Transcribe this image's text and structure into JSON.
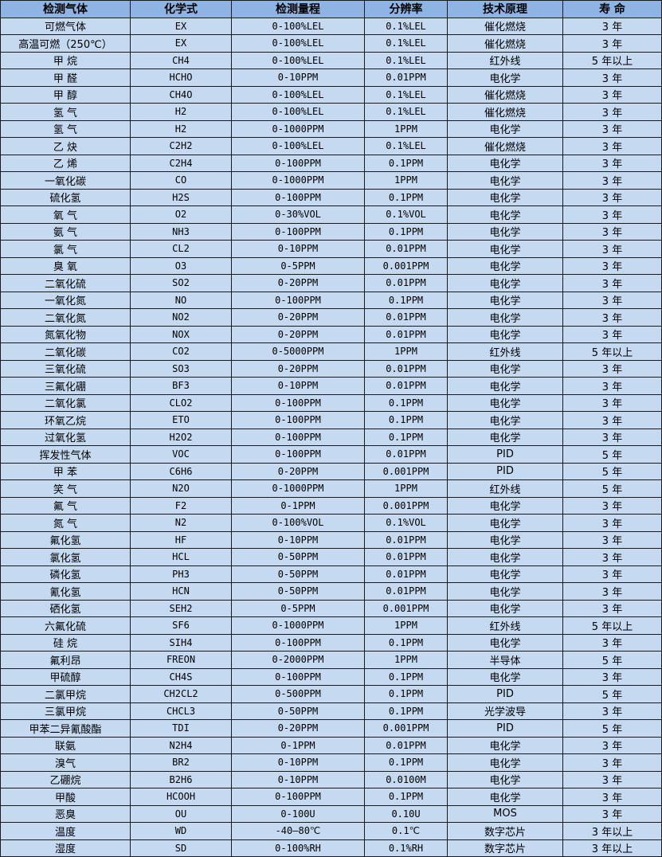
{
  "headers": [
    "检测气体",
    "化学式",
    "检测量程",
    "分辨率",
    "技术原理",
    "寿 命"
  ],
  "rows": [
    [
      "可燃气体",
      "EX",
      "0-100%LEL",
      "0.1%LEL",
      "催化燃烧",
      "3 年"
    ],
    [
      "高温可燃（250℃）",
      "EX",
      "0-100%LEL",
      "0.1%LEL",
      "催化燃烧",
      "3 年"
    ],
    [
      "甲 烷",
      "CH4",
      "0-100%LEL",
      "0.1%LEL",
      "红外线",
      "5 年以上"
    ],
    [
      "甲 醛",
      "HCHO",
      "0-10PPM",
      "0.01PPM",
      "电化学",
      "3 年"
    ],
    [
      "甲 醇",
      "CH4O",
      "0-100%LEL",
      "0.1%LEL",
      "催化燃烧",
      "3 年"
    ],
    [
      "氢 气",
      "H2",
      "0-100%LEL",
      "0.1%LEL",
      "催化燃烧",
      "3 年"
    ],
    [
      "氢 气",
      "H2",
      "0-1000PPM",
      "1PPM",
      "电化学",
      "3 年"
    ],
    [
      "乙 炔",
      "C2H2",
      "0-100%LEL",
      "0.1%LEL",
      "催化燃烧",
      "3 年"
    ],
    [
      "乙 烯",
      "C2H4",
      "0-100PPM",
      "0.1PPM",
      "电化学",
      "3 年"
    ],
    [
      "一氧化碳",
      "CO",
      "0-1000PPM",
      "1PPM",
      "电化学",
      "3 年"
    ],
    [
      "硫化氢",
      "H2S",
      "0-100PPM",
      "0.1PPM",
      "电化学",
      "3 年"
    ],
    [
      "氧 气",
      "O2",
      "0-30%VOL",
      "0.1%VOL",
      "电化学",
      "3 年"
    ],
    [
      "氨 气",
      "NH3",
      "0-100PPM",
      "0.1PPM",
      "电化学",
      "3 年"
    ],
    [
      "氯 气",
      "CL2",
      "0-10PPM",
      "0.01PPM",
      "电化学",
      "3 年"
    ],
    [
      "臭 氧",
      "O3",
      "0-5PPM",
      "0.001PPM",
      "电化学",
      "3 年"
    ],
    [
      "二氧化硫",
      "SO2",
      "0-20PPM",
      "0.01PPM",
      "电化学",
      "3 年"
    ],
    [
      "一氧化氮",
      "NO",
      "0-100PPM",
      "0.1PPM",
      "电化学",
      "3 年"
    ],
    [
      "二氧化氮",
      "NO2",
      "0-20PPM",
      "0.01PPM",
      "电化学",
      "3 年"
    ],
    [
      "氮氧化物",
      "NOX",
      "0-20PPM",
      "0.01PPM",
      "电化学",
      "3 年"
    ],
    [
      "二氧化碳",
      "CO2",
      "0-5000PPM",
      "1PPM",
      "红外线",
      "5 年以上"
    ],
    [
      "三氧化硫",
      "SO3",
      "0-20PPM",
      "0.01PPM",
      "电化学",
      "3 年"
    ],
    [
      "三氟化硼",
      "BF3",
      "0-10PPM",
      "0.01PPM",
      "电化学",
      "3 年"
    ],
    [
      "二氧化氯",
      "CLO2",
      "0-100PPM",
      "0.1PPM",
      "电化学",
      "3 年"
    ],
    [
      "环氧乙烷",
      "ETO",
      "0-100PPM",
      "0.1PPM",
      "电化学",
      "3 年"
    ],
    [
      "过氧化氢",
      "H2O2",
      "0-100PPM",
      "0.1PPM",
      "电化学",
      "3 年"
    ],
    [
      "挥发性气体",
      "VOC",
      "0-100PPM",
      "0.01PPM",
      "PID",
      "5 年"
    ],
    [
      "甲 苯",
      "C6H6",
      "0-20PPM",
      "0.001PPM",
      "PID",
      "5 年"
    ],
    [
      "笑 气",
      "N2O",
      "0-1000PPM",
      "1PPM",
      "红外线",
      "5 年"
    ],
    [
      "氟 气",
      "F2",
      "0-1PPM",
      "0.001PPM",
      "电化学",
      "3 年"
    ],
    [
      "氮 气",
      "N2",
      "0-100%VOL",
      "0.1%VOL",
      "电化学",
      "3 年"
    ],
    [
      "氟化氢",
      "HF",
      "0-10PPM",
      "0.01PPM",
      "电化学",
      "3 年"
    ],
    [
      "氯化氢",
      "HCL",
      "0-50PPM",
      "0.01PPM",
      "电化学",
      "3 年"
    ],
    [
      "磷化氢",
      "PH3",
      "0-50PPM",
      "0.01PPM",
      "电化学",
      "3 年"
    ],
    [
      "氰化氢",
      "HCN",
      "0-50PPM",
      "0.01PPM",
      "电化学",
      "3 年"
    ],
    [
      "硒化氢",
      "SEH2",
      "0-5PPM",
      "0.001PPM",
      "电化学",
      "3 年"
    ],
    [
      "六氟化硫",
      "SF6",
      "0-1000PPM",
      "1PPM",
      "红外线",
      "5 年以上"
    ],
    [
      "硅 烷",
      "SIH4",
      "0-100PPM",
      "0.1PPM",
      "电化学",
      "3 年"
    ],
    [
      "氟利昂",
      "FREON",
      "0-2000PPM",
      "1PPM",
      "半导体",
      "5 年"
    ],
    [
      "甲硫醇",
      "CH4S",
      "0-100PPM",
      "0.1PPM",
      "电化学",
      "3 年"
    ],
    [
      "二氯甲烷",
      "CH2CL2",
      "0-500PPM",
      "0.1PPM",
      "PID",
      "5 年"
    ],
    [
      "三氯甲烷",
      "CHCL3",
      "0-50PPM",
      "0.1PPM",
      "光学波导",
      "3 年"
    ],
    [
      "甲苯二异氰酸酯",
      "TDI",
      "0-20PPM",
      "0.001PPM",
      "PID",
      "5 年"
    ],
    [
      "联氨",
      "N2H4",
      "0-1PPM",
      "0.01PPM",
      "电化学",
      "3 年"
    ],
    [
      "溴气",
      "BR2",
      "0-10PPM",
      "0.1PPM",
      "电化学",
      "3 年"
    ],
    [
      "乙硼烷",
      "B2H6",
      "0-10PPM",
      "0.0100M",
      "电化学",
      "3 年"
    ],
    [
      "甲酸",
      "HCOOH",
      "0-100PPM",
      "0.1PPM",
      "电化学",
      "3 年"
    ],
    [
      "恶臭",
      "OU",
      "0-100U",
      "0.10U",
      "MOS",
      "3 年"
    ],
    [
      "温度",
      "WD",
      "-40—80℃",
      "0.1℃",
      "数字芯片",
      "3 年以上"
    ],
    [
      "湿度",
      "SD",
      "0-100%RH",
      "0.1%RH",
      "数字芯片",
      "3 年以上"
    ]
  ],
  "colors": {
    "header_bg": "#8db4e2",
    "row_bg": "#c5d9f1",
    "border": "#1a1a1a"
  }
}
